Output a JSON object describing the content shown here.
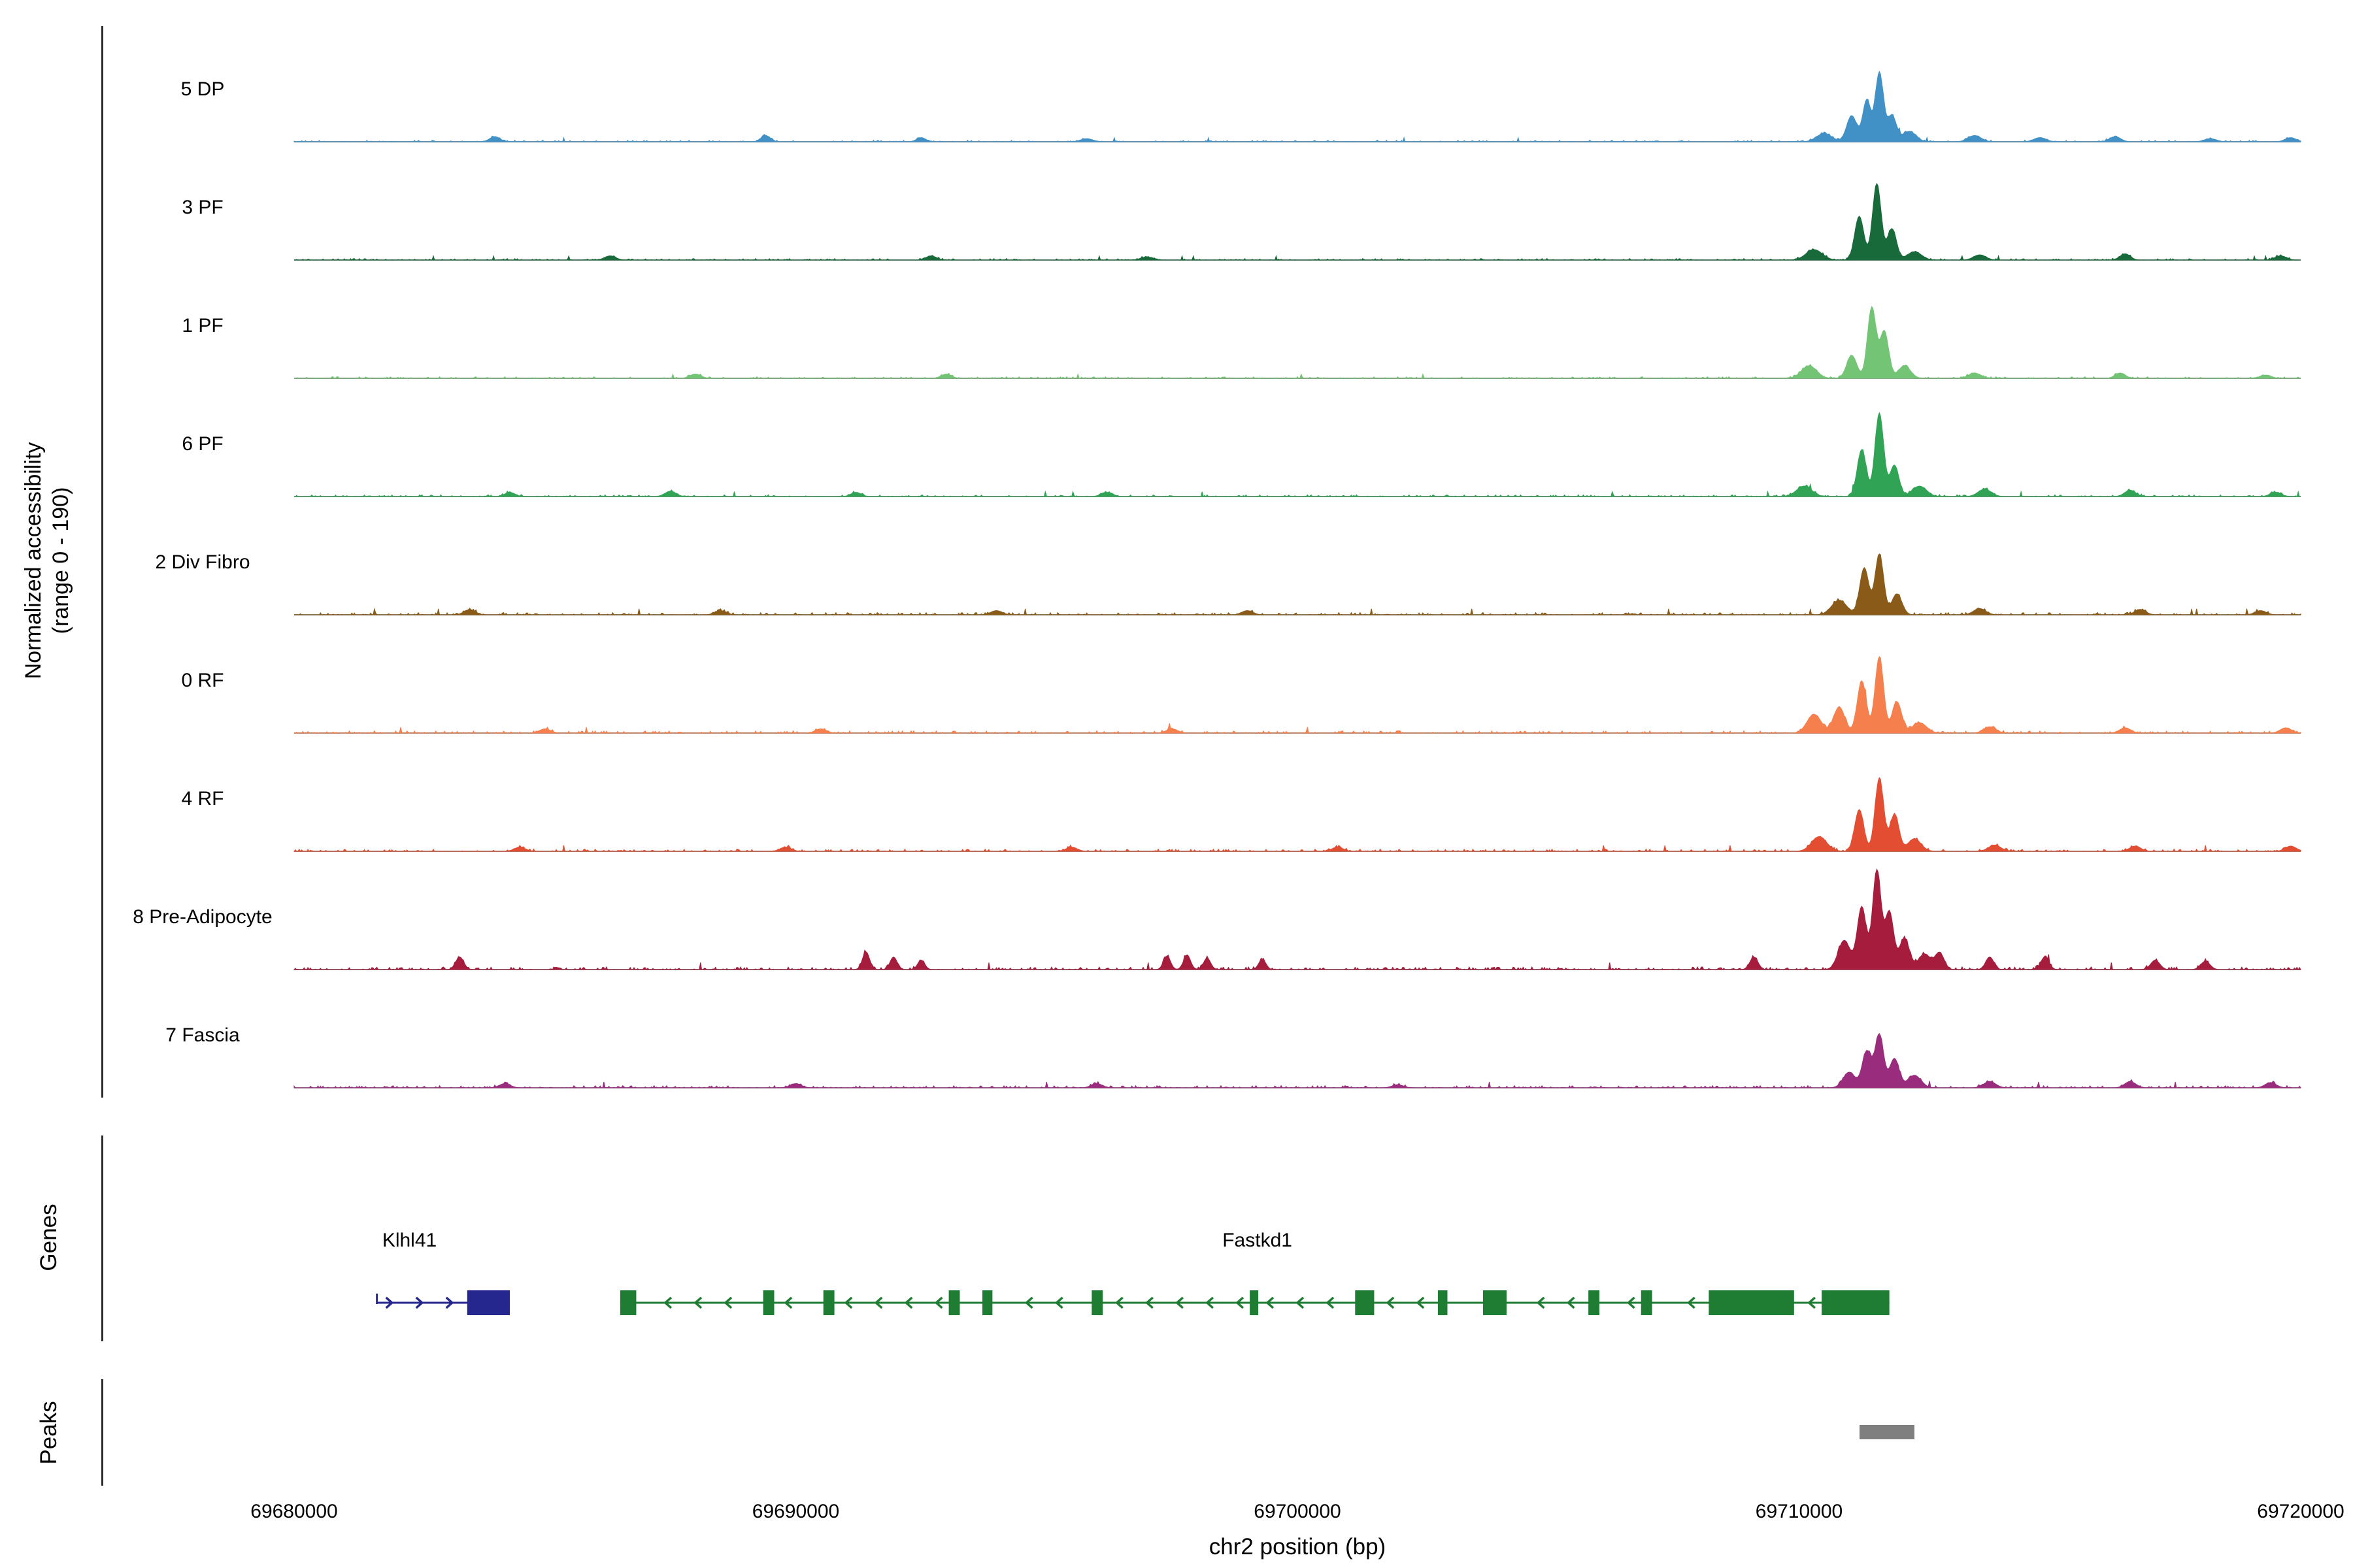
{
  "y_axis": {
    "label_line1": "Normalized accessibility",
    "label_line2": "(range 0 - 190)"
  },
  "sections": {
    "genes": "Genes",
    "peaks": "Peaks"
  },
  "x_axis": {
    "title": "chr2 position (bp)",
    "tick_labels": [
      "69680000",
      "69690000",
      "69700000",
      "69710000",
      "69720000"
    ]
  },
  "chart_data": {
    "type": "area",
    "region": {
      "chrom": "chr2",
      "start": 69680000,
      "end": 69720000
    },
    "y_range": [
      0,
      190
    ],
    "x_ticks": [
      69680000,
      69690000,
      69700000,
      69710000,
      69720000
    ],
    "tracks": [
      {
        "name": "5 DP",
        "color": "#4191c6",
        "seed": 101,
        "noise": 0.015,
        "peaks": [
          [
            69710500,
            0.08,
            150
          ],
          [
            69711050,
            0.25,
            100
          ],
          [
            69711350,
            0.4,
            80
          ],
          [
            69711600,
            0.66,
            80
          ],
          [
            69711850,
            0.25,
            90
          ],
          [
            69712200,
            0.1,
            130
          ],
          [
            69684000,
            0.05,
            100
          ],
          [
            69689400,
            0.06,
            90
          ],
          [
            69692500,
            0.04,
            90
          ],
          [
            69695800,
            0.03,
            120
          ],
          [
            69713500,
            0.06,
            130
          ],
          [
            69714800,
            0.04,
            120
          ],
          [
            69716300,
            0.05,
            110
          ],
          [
            69718200,
            0.03,
            120
          ],
          [
            69719800,
            0.04,
            110
          ]
        ]
      },
      {
        "name": "3 PF",
        "color": "#186a3b",
        "seed": 102,
        "noise": 0.015,
        "peaks": [
          [
            69710300,
            0.1,
            160
          ],
          [
            69711200,
            0.42,
            90
          ],
          [
            69711550,
            0.73,
            85
          ],
          [
            69711850,
            0.3,
            90
          ],
          [
            69712300,
            0.08,
            140
          ],
          [
            69686300,
            0.04,
            110
          ],
          [
            69692700,
            0.04,
            100
          ],
          [
            69697000,
            0.03,
            120
          ],
          [
            69713600,
            0.05,
            120
          ],
          [
            69716500,
            0.06,
            100
          ],
          [
            69719600,
            0.04,
            110
          ]
        ]
      },
      {
        "name": "1 PF",
        "color": "#74c476",
        "seed": 103,
        "noise": 0.015,
        "peaks": [
          [
            69710200,
            0.12,
            150
          ],
          [
            69711050,
            0.22,
            100
          ],
          [
            69711450,
            0.68,
            85
          ],
          [
            69711700,
            0.45,
            85
          ],
          [
            69712100,
            0.12,
            120
          ],
          [
            69688000,
            0.04,
            110
          ],
          [
            69693000,
            0.04,
            100
          ],
          [
            69713500,
            0.05,
            120
          ],
          [
            69716400,
            0.05,
            100
          ],
          [
            69719300,
            0.03,
            110
          ]
        ]
      },
      {
        "name": "6 PF",
        "color": "#31a354",
        "seed": 104,
        "noise": 0.018,
        "peaks": [
          [
            69710100,
            0.1,
            150
          ],
          [
            69711250,
            0.45,
            90
          ],
          [
            69711600,
            0.8,
            85
          ],
          [
            69711900,
            0.3,
            90
          ],
          [
            69712400,
            0.1,
            140
          ],
          [
            69684300,
            0.04,
            100
          ],
          [
            69687500,
            0.05,
            110
          ],
          [
            69691200,
            0.04,
            100
          ],
          [
            69696200,
            0.04,
            110
          ],
          [
            69713700,
            0.07,
            130
          ],
          [
            69716600,
            0.06,
            110
          ],
          [
            69719500,
            0.04,
            110
          ]
        ]
      },
      {
        "name": "2 Div Fibro",
        "color": "#8a5a19",
        "seed": 105,
        "noise": 0.022,
        "peaks": [
          [
            69710800,
            0.14,
            150
          ],
          [
            69711300,
            0.45,
            90
          ],
          [
            69711600,
            0.58,
            85
          ],
          [
            69711950,
            0.2,
            100
          ],
          [
            69683500,
            0.05,
            110
          ],
          [
            69688500,
            0.04,
            110
          ],
          [
            69694000,
            0.04,
            110
          ],
          [
            69699000,
            0.04,
            110
          ],
          [
            69713600,
            0.06,
            120
          ],
          [
            69716800,
            0.05,
            110
          ],
          [
            69719200,
            0.04,
            110
          ]
        ]
      },
      {
        "name": "0 RF",
        "color": "#f5804e",
        "seed": 106,
        "noise": 0.022,
        "peaks": [
          [
            69710300,
            0.18,
            140
          ],
          [
            69710800,
            0.25,
            110
          ],
          [
            69711250,
            0.5,
            90
          ],
          [
            69711600,
            0.73,
            85
          ],
          [
            69711950,
            0.3,
            95
          ],
          [
            69712400,
            0.1,
            140
          ],
          [
            69685000,
            0.04,
            110
          ],
          [
            69690500,
            0.04,
            110
          ],
          [
            69697500,
            0.04,
            110
          ],
          [
            69713800,
            0.06,
            120
          ],
          [
            69716500,
            0.05,
            110
          ],
          [
            69719700,
            0.05,
            110
          ]
        ]
      },
      {
        "name": "4 RF",
        "color": "#e34e33",
        "seed": 107,
        "noise": 0.022,
        "peaks": [
          [
            69710400,
            0.14,
            150
          ],
          [
            69711200,
            0.4,
            90
          ],
          [
            69711600,
            0.7,
            85
          ],
          [
            69711900,
            0.35,
            90
          ],
          [
            69712300,
            0.12,
            130
          ],
          [
            69684500,
            0.04,
            110
          ],
          [
            69689800,
            0.04,
            110
          ],
          [
            69695500,
            0.04,
            110
          ],
          [
            69700800,
            0.04,
            110
          ],
          [
            69713900,
            0.06,
            120
          ],
          [
            69716700,
            0.05,
            110
          ],
          [
            69719800,
            0.05,
            110
          ]
        ]
      },
      {
        "name": "8 Pre-Adipocyte",
        "color": "#a51c3c",
        "seed": 108,
        "noise": 0.026,
        "peaks": [
          [
            69710900,
            0.28,
            120
          ],
          [
            69711250,
            0.6,
            90
          ],
          [
            69711550,
            0.95,
            85
          ],
          [
            69711800,
            0.55,
            85
          ],
          [
            69712100,
            0.3,
            100
          ],
          [
            69712500,
            0.15,
            120
          ],
          [
            69683300,
            0.12,
            80
          ],
          [
            69691400,
            0.17,
            70
          ],
          [
            69691950,
            0.12,
            70
          ],
          [
            69692500,
            0.09,
            70
          ],
          [
            69697400,
            0.13,
            70
          ],
          [
            69697800,
            0.14,
            70
          ],
          [
            69698200,
            0.11,
            70
          ],
          [
            69699300,
            0.1,
            70
          ],
          [
            69709100,
            0.12,
            80
          ],
          [
            69712800,
            0.16,
            90
          ],
          [
            69713800,
            0.12,
            80
          ],
          [
            69714900,
            0.12,
            80
          ],
          [
            69717100,
            0.09,
            90
          ],
          [
            69718100,
            0.08,
            90
          ]
        ]
      },
      {
        "name": "7 Fascia",
        "color": "#992c7c",
        "seed": 109,
        "noise": 0.022,
        "peaks": [
          [
            69711000,
            0.15,
            120
          ],
          [
            69711350,
            0.35,
            90
          ],
          [
            69711600,
            0.51,
            85
          ],
          [
            69711900,
            0.28,
            95
          ],
          [
            69712300,
            0.12,
            130
          ],
          [
            69684200,
            0.04,
            110
          ],
          [
            69690000,
            0.04,
            110
          ],
          [
            69696000,
            0.04,
            110
          ],
          [
            69702000,
            0.03,
            110
          ],
          [
            69713800,
            0.06,
            120
          ],
          [
            69716600,
            0.06,
            110
          ],
          [
            69719400,
            0.05,
            110
          ]
        ]
      }
    ],
    "genes": [
      {
        "name": "Klhl41",
        "strand": "+",
        "color": "#26268f",
        "label_bp": 69682300,
        "line": [
          69681650,
          69684300
        ],
        "exons": [
          [
            69683450,
            850
          ]
        ]
      },
      {
        "name": "Fastkd1",
        "strand": "-",
        "color": "#1e7d32",
        "label_bp": 69699200,
        "line": [
          69686500,
          69711800
        ],
        "exons": [
          [
            69686500,
            320
          ],
          [
            69689350,
            220
          ],
          [
            69690550,
            220
          ],
          [
            69693050,
            220
          ],
          [
            69693720,
            200
          ],
          [
            69695900,
            220
          ],
          [
            69699050,
            170
          ],
          [
            69701150,
            380
          ],
          [
            69702800,
            190
          ],
          [
            69703700,
            470
          ],
          [
            69705800,
            220
          ],
          [
            69706850,
            220
          ],
          [
            69708200,
            1700
          ],
          [
            69710450,
            1350
          ]
        ]
      }
    ],
    "peak_regions": [
      {
        "start": 69711200,
        "end": 69712300,
        "color": "#7f7f7f"
      }
    ]
  }
}
